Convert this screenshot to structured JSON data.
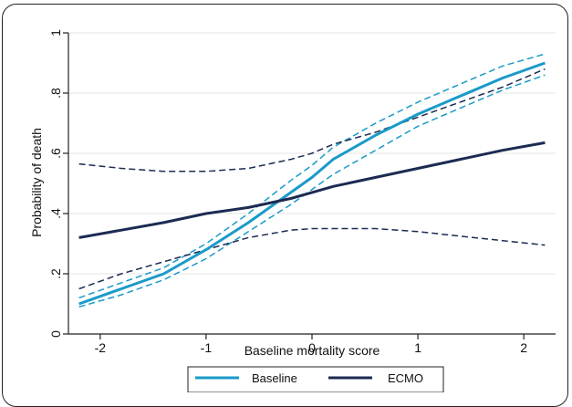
{
  "chart_data": {
    "type": "line",
    "xlabel": "Baseline mortality score",
    "ylabel": "Probability of death",
    "xlim": [
      -2.3,
      2.3
    ],
    "ylim": [
      0,
      1
    ],
    "x_ticks": [
      -2,
      -1,
      0,
      1,
      2
    ],
    "x_tick_labels": [
      "-2",
      "-1",
      "0",
      "1",
      "2"
    ],
    "y_ticks": [
      0,
      0.2,
      0.4,
      0.6,
      0.8,
      1
    ],
    "y_tick_labels": [
      "0",
      ".2",
      ".4",
      ".6",
      ".8",
      "1"
    ],
    "grid": "horizontal",
    "legend_position": "bottom",
    "series": [
      {
        "name": "Baseline",
        "color": "#1a9ac8",
        "x": [
          -2.2,
          -1.8,
          -1.4,
          -1.0,
          -0.6,
          -0.2,
          0.0,
          0.2,
          0.6,
          1.0,
          1.4,
          1.8,
          2.2
        ],
        "values": [
          0.1,
          0.15,
          0.2,
          0.28,
          0.37,
          0.47,
          0.52,
          0.58,
          0.66,
          0.73,
          0.79,
          0.85,
          0.9
        ],
        "lower": [
          0.09,
          0.13,
          0.18,
          0.25,
          0.34,
          0.43,
          0.48,
          0.53,
          0.61,
          0.69,
          0.75,
          0.81,
          0.86
        ],
        "upper": [
          0.12,
          0.17,
          0.22,
          0.3,
          0.4,
          0.51,
          0.56,
          0.62,
          0.7,
          0.77,
          0.83,
          0.89,
          0.93
        ]
      },
      {
        "name": "ECMO",
        "color": "#1c2b52",
        "x": [
          -2.2,
          -1.8,
          -1.4,
          -1.0,
          -0.6,
          -0.2,
          0.0,
          0.2,
          0.6,
          1.0,
          1.4,
          1.8,
          2.2
        ],
        "values": [
          0.32,
          0.345,
          0.37,
          0.4,
          0.42,
          0.45,
          0.47,
          0.49,
          0.52,
          0.55,
          0.58,
          0.61,
          0.635
        ],
        "lower": [
          0.15,
          0.2,
          0.24,
          0.28,
          0.32,
          0.345,
          0.35,
          0.35,
          0.35,
          0.34,
          0.325,
          0.31,
          0.295
        ],
        "upper": [
          0.565,
          0.55,
          0.54,
          0.54,
          0.55,
          0.58,
          0.6,
          0.63,
          0.67,
          0.72,
          0.77,
          0.82,
          0.88
        ]
      }
    ]
  }
}
